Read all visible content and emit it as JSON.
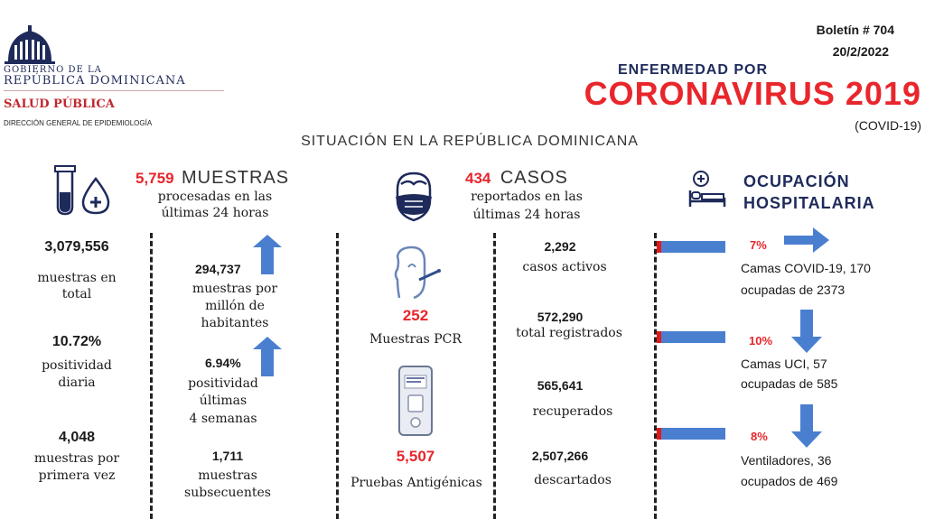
{
  "logo": {
    "line1": "GOBIERNO DE LA",
    "line2": "REPÚBLICA DOMINICANA",
    "line3": "SALUD PÚBLICA",
    "line4": "DIRECCIÓN GENERAL DE EPIDEMIOLOGÍA"
  },
  "bulletin": {
    "number": "Boletín # 704",
    "date": "20/2/2022"
  },
  "title": {
    "line1": "ENFERMEDAD POR",
    "line2": "CORONAVIRUS 2019",
    "line3": "(COVID-19)"
  },
  "subtitle": "SITUACIÓN EN LA REPÚBLICA DOMINICANA",
  "muestras": {
    "count": "5,759",
    "heading": "MUESTRAS",
    "sub1": "procesadas en las",
    "sub2": "últimas 24 horas",
    "total_value": "3,079,556",
    "total_l1": "muestras en",
    "total_l2": "total",
    "posdiaria_value": "10.72%",
    "posdiaria_l1": "positividad",
    "posdiaria_l2": "diaria",
    "primera_value": "4,048",
    "primera_l1": "muestras por",
    "primera_l2": "primera vez",
    "permillon_value": "294,737",
    "permillon_l1": "muestras por",
    "permillon_l2": "millón de",
    "permillon_l3": "habitantes",
    "pos4_value": "6.94%",
    "pos4_l1": "positividad",
    "pos4_l2": "últimas",
    "pos4_l3": "4 semanas",
    "subsec_value": "1,711",
    "subsec_l1": "muestras",
    "subsec_l2": "subsecuentes"
  },
  "casos": {
    "count": "434",
    "heading": "CASOS",
    "sub1": "reportados en las",
    "sub2": "últimas 24 horas",
    "pcr_value": "252",
    "pcr_label": "Muestras PCR",
    "antigen_value": "5,507",
    "antigen_label": "Pruebas Antigénicas",
    "activos_value": "2,292",
    "activos_label": "casos activos",
    "registrados_value": "572,290",
    "registrados_label": "total registrados",
    "recuperados_value": "565,641",
    "recuperados_label": "recuperados",
    "descartados_value": "2,507,266",
    "descartados_label": "descartados"
  },
  "ocupacion": {
    "heading1": "OCUPACIÓN",
    "heading2": "HOSPITALARIA",
    "items": [
      {
        "pct": "7%",
        "value": 0.07,
        "l1": "Camas COVID-19,  170",
        "l2": "ocupadas de 2373"
      },
      {
        "pct": "10%",
        "value": 0.1,
        "l1": "Camas UCI,  57",
        "l2": "ocupadas de 585"
      },
      {
        "pct": "8%",
        "value": 0.08,
        "l1": "Ventiladores, 36",
        "l2": "ocupados de 469"
      }
    ]
  },
  "colors": {
    "red": "#e8262c",
    "navy": "#1e2a5a",
    "blue": "#4a7fd0"
  },
  "icons": [
    "coat-of-arms-icon",
    "test-tube-icon",
    "blood-drop-icon",
    "masked-face-icon",
    "nasal-swab-icon",
    "antigen-test-icon",
    "hospital-bed-icon",
    "arrow-up-icon",
    "arrow-right-icon",
    "arrow-down-icon"
  ]
}
